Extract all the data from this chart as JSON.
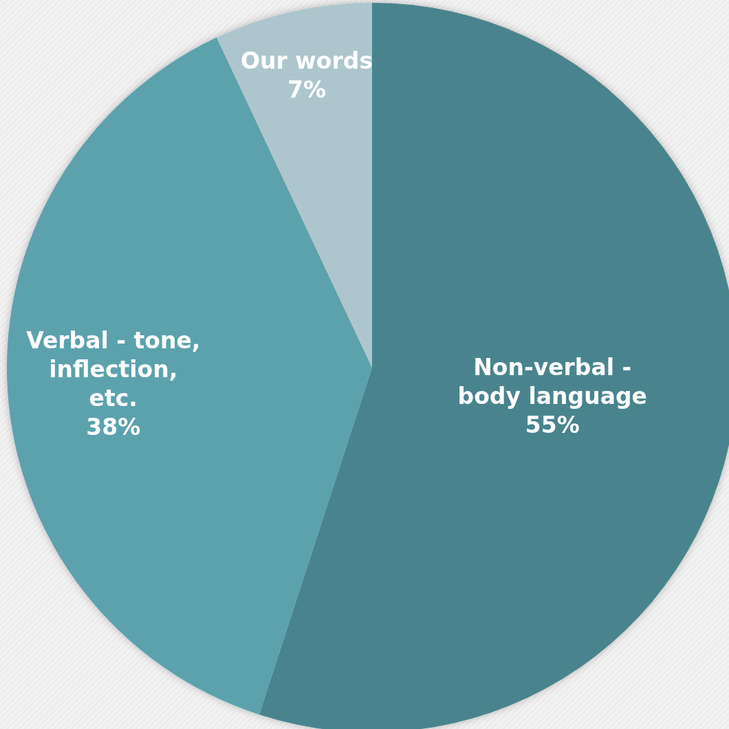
{
  "chart_data": {
    "type": "pie",
    "categories": [
      "Non-verbal - body language",
      "Verbal - tone, inflection, etc.",
      "Our words"
    ],
    "values": [
      55,
      38,
      7
    ],
    "value_labels": [
      "55%",
      "38%",
      "7%"
    ],
    "colors": [
      "#4a848e",
      "#5ba2ad",
      "#adc6cd"
    ]
  }
}
